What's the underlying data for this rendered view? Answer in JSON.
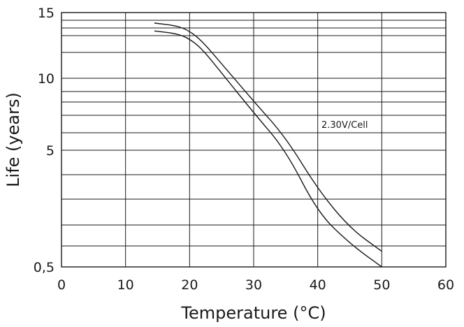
{
  "chart_data": {
    "type": "line",
    "title": "",
    "xlabel": "Temperature (°C)",
    "ylabel": "Life (years)",
    "xlim": [
      0,
      60
    ],
    "ylim": [
      0.5,
      15
    ],
    "grid": true,
    "x_ticks": [
      "0",
      "10",
      "20",
      "30",
      "40",
      "50",
      "60"
    ],
    "y_ticks": [
      {
        "label": "15",
        "value": 15
      },
      {
        "label": "10",
        "value": 10
      },
      {
        "label": "5",
        "value": 5
      },
      {
        "label": "0,5",
        "value": 0.5
      }
    ],
    "annotation": "2.30V/Cell",
    "series": [
      {
        "x": [
          14.5,
          18,
          20,
          22,
          25,
          30,
          35,
          40,
          45,
          50
        ],
        "y": [
          13.6,
          13.4,
          13.0,
          12.2,
          10.4,
          7.6,
          5.0,
          2.6,
          1.4,
          0.5
        ]
      },
      {
        "x": [
          14.5,
          18,
          20,
          22,
          25,
          30,
          35,
          40,
          45,
          50
        ],
        "y": [
          14.2,
          14.0,
          13.6,
          12.8,
          11.1,
          8.4,
          5.9,
          3.5,
          2.0,
          1.1
        ]
      }
    ]
  }
}
